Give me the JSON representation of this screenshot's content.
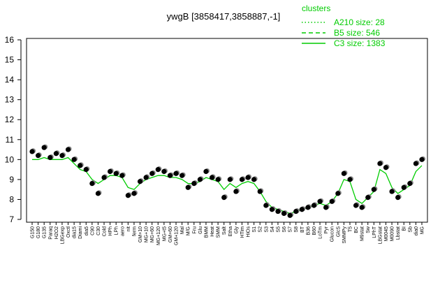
{
  "chart_data": {
    "type": "line",
    "title": "ywgB [3858417,3858887,-1]",
    "legend_title": "clusters",
    "legend_items": [
      {
        "label": "A210 size: 28",
        "dash": "dotted"
      },
      {
        "label": "B5 size: 546",
        "dash": "dashed"
      },
      {
        "label": "C3 size: 1383",
        "dash": "solid"
      }
    ],
    "line_color": "#00cc00",
    "point_color": "#000000",
    "ylim": [
      7,
      16
    ],
    "yticks": [
      7,
      8,
      9,
      10,
      11,
      12,
      13,
      14,
      15,
      16
    ],
    "categories": [
      "G150",
      "G180",
      "G135",
      "Paraq",
      "H2O2",
      "LBGexp",
      "Oxctl",
      "dia15",
      "Diami",
      "dia5",
      "C90",
      "C30",
      "Cold",
      "HPh",
      "LPh",
      "aero",
      "nit",
      "ferm",
      "GM+10",
      "MG+10",
      "MG+60",
      "MG+120",
      "MG+t5",
      "GM+60",
      "GM+120",
      "Mal",
      "M/G",
      "Fru",
      "Glu",
      "BMM",
      "Heat",
      "SMM",
      "Salt",
      "Etha",
      "Gly",
      "HTim",
      "HiOs",
      "S1",
      "S2",
      "S3",
      "S4",
      "S5",
      "S6",
      "S7",
      "S8",
      "BT",
      "B36",
      "B60",
      "LoTm",
      "Pyr",
      "Glucon",
      "GlcS",
      "SMMPy",
      "T5",
      "BC",
      "M9stat",
      "Sw",
      "LPhT",
      "LBGstat",
      "M0045",
      "M0090",
      "Lbstat",
      "BI",
      "Sb",
      "dia0",
      "MG"
    ],
    "points": [
      10.4,
      10.2,
      10.6,
      10.1,
      10.3,
      10.2,
      10.5,
      10.0,
      9.7,
      9.5,
      8.8,
      8.3,
      9.1,
      9.4,
      9.3,
      9.2,
      8.2,
      8.3,
      8.9,
      9.1,
      9.3,
      9.5,
      9.4,
      9.2,
      9.3,
      9.2,
      8.6,
      8.8,
      9.0,
      9.4,
      9.1,
      9.0,
      8.1,
      9.0,
      8.4,
      9.0,
      9.1,
      9.0,
      8.4,
      7.7,
      7.5,
      7.4,
      7.3,
      7.2,
      7.4,
      7.5,
      7.6,
      7.7,
      7.9,
      7.6,
      7.9,
      8.3,
      9.3,
      9.0,
      7.7,
      7.6,
      8.1,
      8.5,
      9.8,
      9.6,
      8.4,
      8.1,
      8.6,
      8.8,
      9.8,
      10.0
    ],
    "series": [
      {
        "name": "C3 size: 1383",
        "values": [
          10.0,
          10.0,
          10.1,
          10.0,
          10.0,
          10.0,
          10.1,
          9.8,
          9.5,
          9.4,
          9.0,
          8.8,
          9.0,
          9.2,
          9.2,
          9.1,
          8.6,
          8.5,
          8.8,
          9.0,
          9.1,
          9.2,
          9.2,
          9.1,
          9.1,
          9.0,
          8.8,
          8.8,
          8.9,
          9.1,
          9.0,
          8.9,
          8.5,
          8.8,
          8.6,
          8.8,
          8.9,
          8.8,
          8.4,
          7.9,
          7.6,
          7.5,
          7.4,
          7.3,
          7.4,
          7.5,
          7.6,
          7.7,
          7.8,
          7.7,
          7.9,
          8.3,
          9.0,
          8.9,
          8.0,
          7.8,
          8.1,
          8.4,
          9.5,
          9.3,
          8.6,
          8.3,
          8.5,
          8.7,
          9.4,
          9.7
        ]
      }
    ]
  }
}
